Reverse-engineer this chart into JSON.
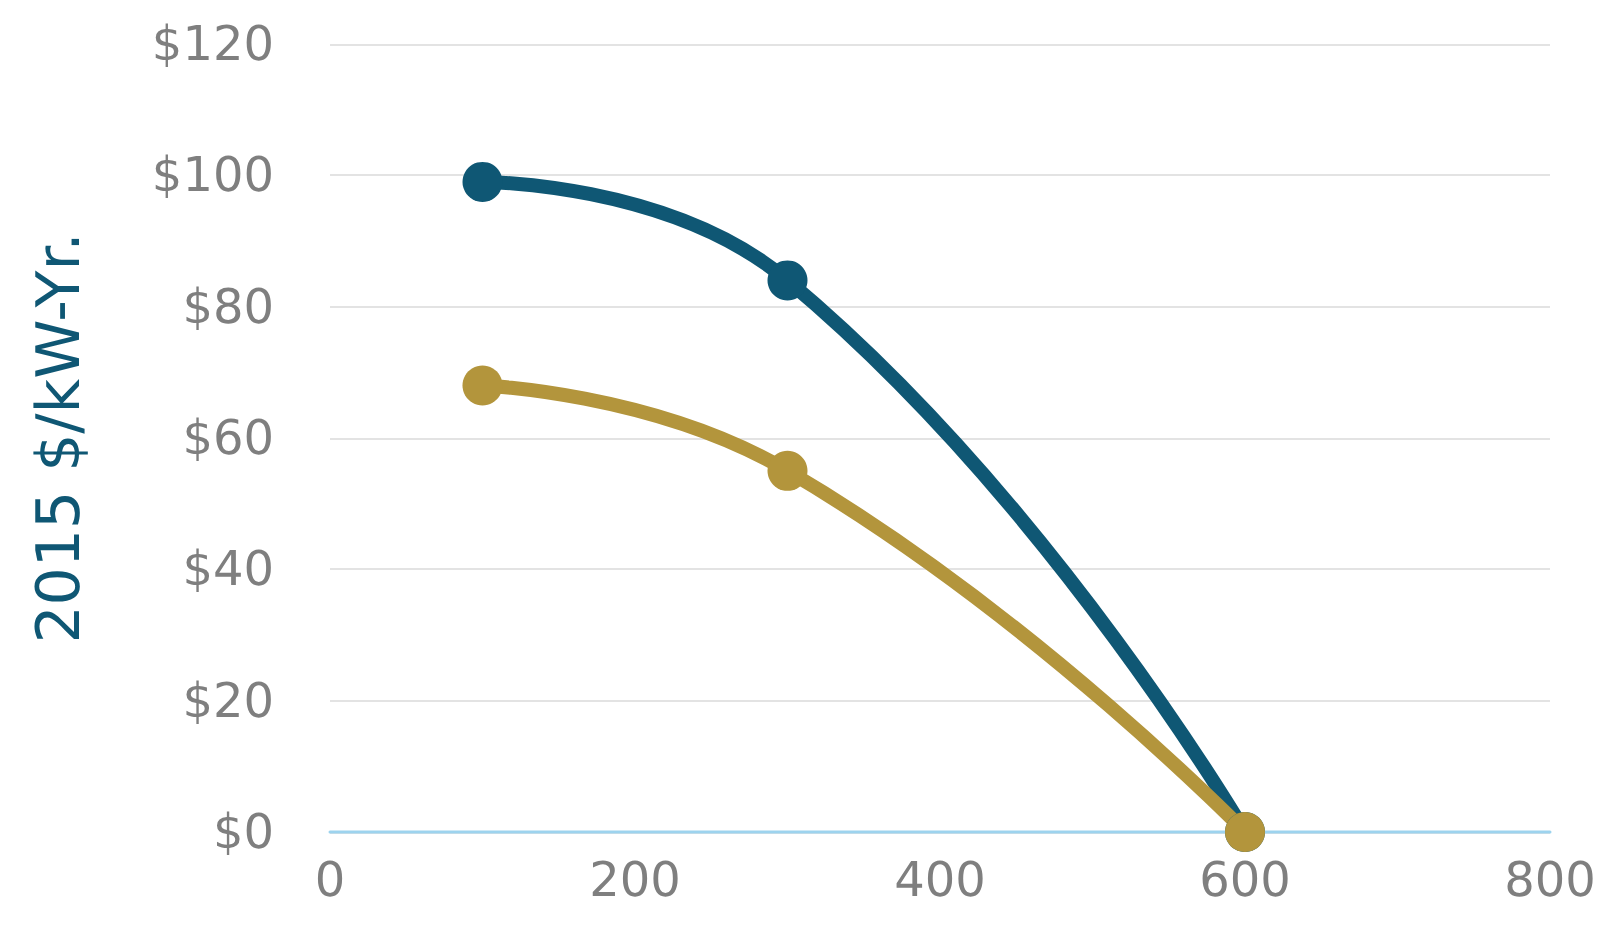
{
  "chart_data": {
    "type": "line",
    "ylabel": "2015 $/kW-Yr.",
    "series": [
      {
        "color": "#0f5774",
        "x": [
          100,
          300,
          600
        ],
        "values": [
          99,
          84,
          0
        ]
      },
      {
        "color": "#b3953c",
        "x": [
          100,
          300,
          600
        ],
        "values": [
          68,
          55,
          0
        ]
      }
    ],
    "xlim": [
      0,
      800
    ],
    "xticks": [
      0,
      200,
      400,
      600,
      800
    ],
    "ylim": [
      0,
      120
    ],
    "yticks": [
      {
        "value": 0,
        "label": "$0"
      },
      {
        "value": 20,
        "label": "$20"
      },
      {
        "value": 40,
        "label": "$40"
      },
      {
        "value": 60,
        "label": "$60"
      },
      {
        "value": 80,
        "label": "$80"
      },
      {
        "value": 100,
        "label": "$100"
      },
      {
        "value": 120,
        "label": "$120"
      }
    ],
    "grid": "y",
    "marker": "circle",
    "line_style": "solid"
  }
}
